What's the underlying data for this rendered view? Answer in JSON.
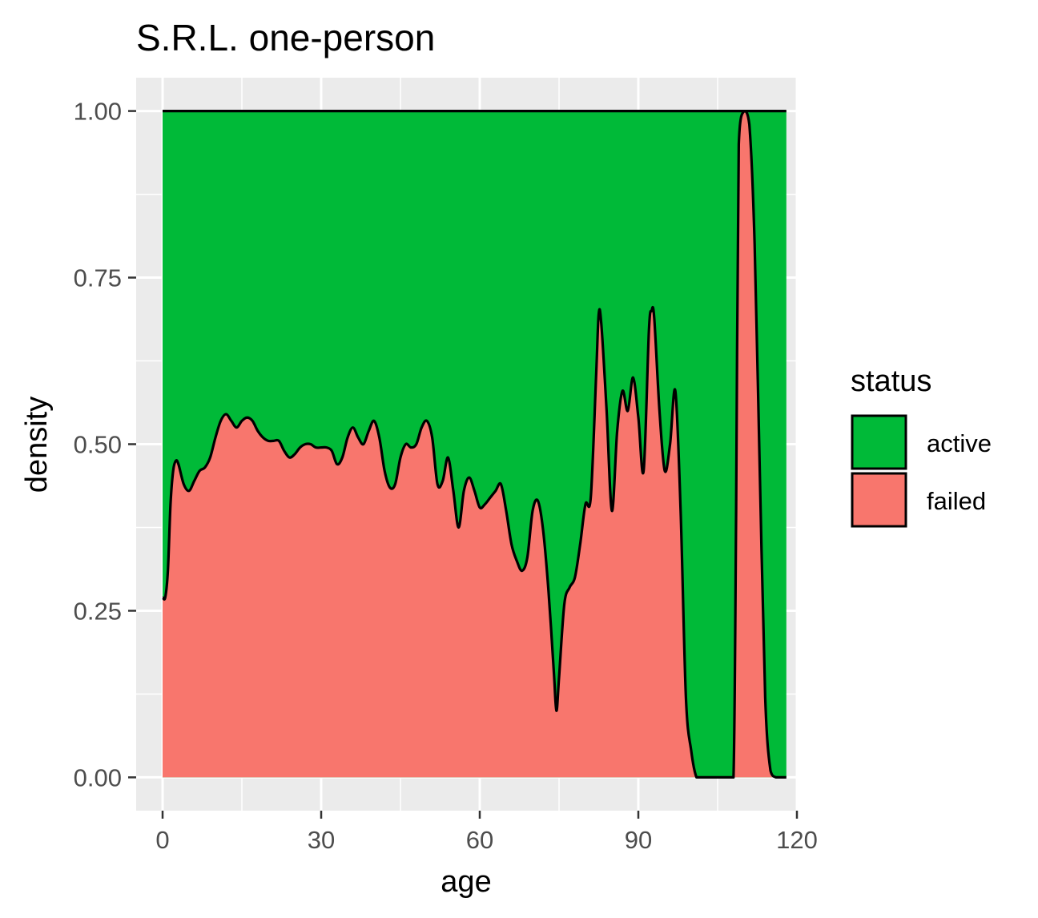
{
  "chart_data": {
    "type": "area",
    "subtype": "conditional-density (filled, stacked to 1)",
    "title": "S.R.L. one-person",
    "xlabel": "age",
    "ylabel": "density",
    "xlim": [
      -5,
      120
    ],
    "ylim": [
      -0.05,
      1.05
    ],
    "x_ticks": [
      0,
      30,
      60,
      90,
      120
    ],
    "x_tick_labels": [
      "0",
      "30",
      "60",
      "90",
      "120"
    ],
    "y_ticks": [
      0,
      0.25,
      0.5,
      0.75,
      1.0
    ],
    "y_tick_labels": [
      "0.00",
      "0.25",
      "0.50",
      "0.75",
      "1.00"
    ],
    "grid": true,
    "legend": {
      "title": "status",
      "position": "right",
      "entries": [
        {
          "label": "active",
          "color": "#00BA38"
        },
        {
          "label": "failed",
          "color": "#F8766D"
        }
      ]
    },
    "series": [
      {
        "name": "active",
        "color": "#00BA38",
        "description": "upper band from boundary to 1.00"
      },
      {
        "name": "failed",
        "color": "#F8766D",
        "description": "lower band from 0 to boundary"
      }
    ],
    "boundary": {
      "x": [
        0,
        0.5,
        1,
        1.5,
        2,
        2.5,
        3,
        4,
        5,
        6,
        7,
        8,
        9,
        10,
        11,
        12,
        13,
        14,
        15,
        16,
        17,
        18,
        19,
        20,
        21,
        22,
        23,
        24,
        25,
        26,
        27,
        28,
        29,
        30,
        31,
        32,
        33,
        34,
        35,
        36,
        37,
        38,
        39,
        40,
        41,
        42,
        43,
        44,
        45,
        46,
        47,
        48,
        49,
        50,
        51,
        52,
        53,
        54,
        55,
        56,
        57,
        58,
        59,
        60,
        61,
        62,
        63,
        64,
        65,
        66,
        67,
        68,
        69,
        70,
        71,
        72,
        73,
        74,
        74.5,
        75,
        76,
        77,
        78,
        79,
        80,
        81,
        82,
        82.5,
        83,
        84,
        85,
        86,
        87,
        88,
        89,
        90,
        91,
        92,
        92.5,
        93,
        94,
        95,
        96,
        97,
        98,
        99,
        100,
        101,
        102,
        103,
        104,
        105,
        106,
        107,
        108,
        108.5,
        109,
        110,
        111,
        112,
        113,
        114,
        115,
        116,
        117,
        118
      ],
      "y": [
        0.27,
        0.27,
        0.31,
        0.41,
        0.46,
        0.475,
        0.47,
        0.44,
        0.43,
        0.445,
        0.46,
        0.465,
        0.48,
        0.51,
        0.535,
        0.545,
        0.535,
        0.525,
        0.535,
        0.54,
        0.535,
        0.52,
        0.51,
        0.505,
        0.505,
        0.505,
        0.49,
        0.48,
        0.485,
        0.495,
        0.5,
        0.5,
        0.495,
        0.495,
        0.495,
        0.49,
        0.47,
        0.48,
        0.51,
        0.525,
        0.51,
        0.5,
        0.52,
        0.535,
        0.51,
        0.46,
        0.435,
        0.44,
        0.48,
        0.5,
        0.495,
        0.5,
        0.525,
        0.535,
        0.51,
        0.44,
        0.445,
        0.48,
        0.43,
        0.375,
        0.43,
        0.45,
        0.43,
        0.405,
        0.41,
        0.42,
        0.43,
        0.44,
        0.4,
        0.35,
        0.325,
        0.31,
        0.33,
        0.4,
        0.415,
        0.37,
        0.28,
        0.16,
        0.1,
        0.15,
        0.26,
        0.285,
        0.3,
        0.35,
        0.41,
        0.42,
        0.6,
        0.695,
        0.68,
        0.55,
        0.4,
        0.52,
        0.58,
        0.55,
        0.6,
        0.54,
        0.46,
        0.67,
        0.7,
        0.69,
        0.55,
        0.46,
        0.5,
        0.58,
        0.4,
        0.12,
        0.04,
        0.0,
        0.0,
        0.0,
        0.0,
        0.0,
        0.0,
        0.0,
        0.0,
        0.4,
        0.95,
        1.0,
        0.98,
        0.8,
        0.45,
        0.12,
        0.01,
        0.0,
        0.0,
        0.0
      ]
    }
  }
}
